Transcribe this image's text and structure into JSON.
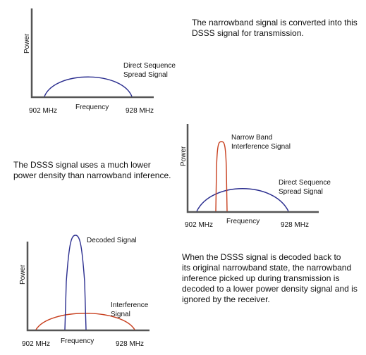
{
  "panel1": {
    "ylabel": "Power",
    "xlabel": "Frequency",
    "freq_low": "902 MHz",
    "freq_high": "928 MHz",
    "curve_label": [
      "Direct Sequence",
      "Spread Signal"
    ],
    "description": [
      "The narrowband signal is converted into this",
      "DSSS signal for transmission."
    ]
  },
  "panel2": {
    "ylabel": "Power",
    "xlabel": "Frequency",
    "freq_low": "902 MHz",
    "freq_high": "928 MHz",
    "narrow_label": [
      "Narrow Band",
      "Interference Signal"
    ],
    "spread_label": [
      "Direct Sequence",
      "Spread Signal"
    ],
    "description": [
      "The DSSS signal uses a much lower",
      "power density than narrowband inference."
    ]
  },
  "panel3": {
    "ylabel": "Power",
    "xlabel": "Frequency",
    "freq_low": "902 MHz",
    "freq_high": "928 MHz",
    "decoded_label": "Decoded Signal",
    "interference_label": [
      "Interference",
      "Signal"
    ],
    "description": [
      "When the DSSS signal is decoded back to",
      "its original narrowband state, the narrowband",
      "inference picked up during transmission is",
      "decoded to a lower power density signal and is",
      "ignored by the receiver."
    ]
  },
  "colors": {
    "spread": "#2b2e8f",
    "narrow": "#c8401f",
    "axis": "#555555"
  }
}
